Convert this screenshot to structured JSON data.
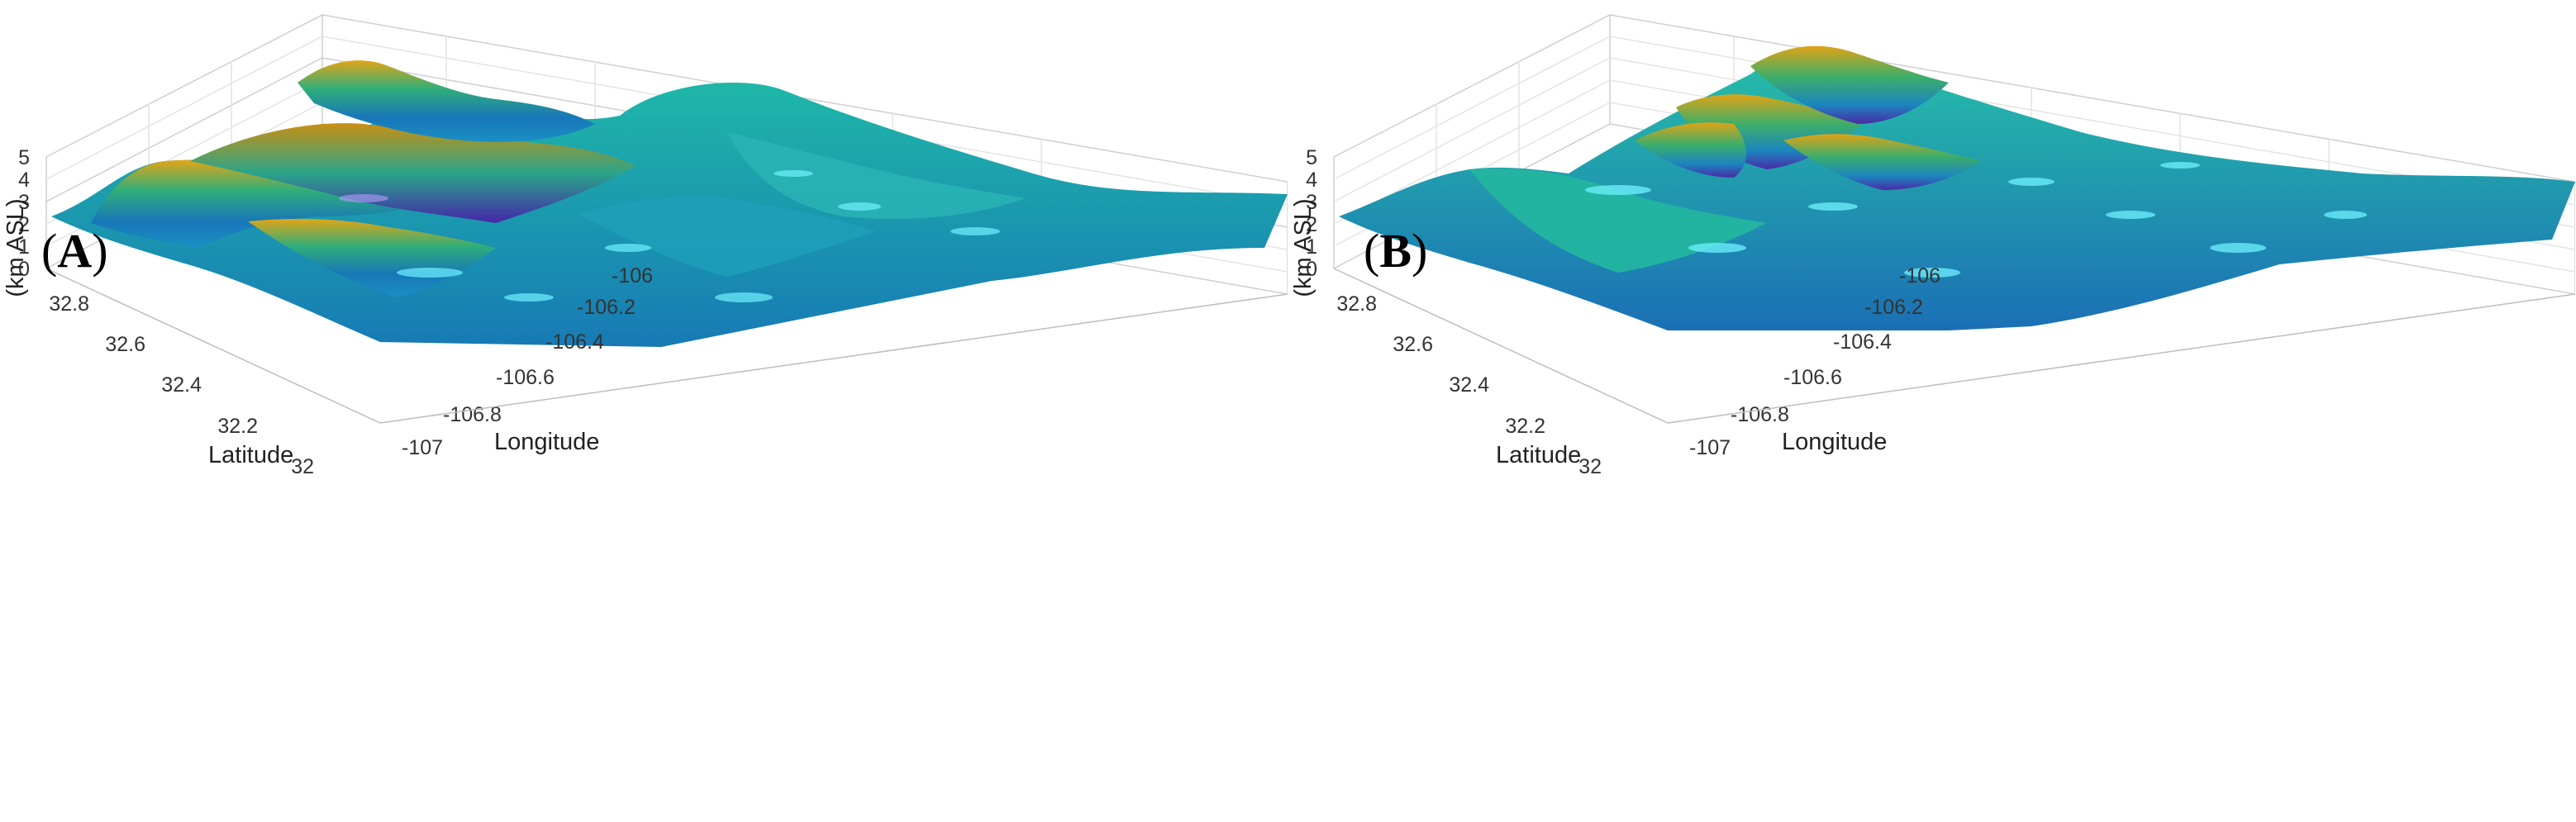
{
  "chart_data": [
    {
      "type": "surface",
      "panel_label": "A",
      "xlabel": "Latitude",
      "ylabel": "Longitude",
      "zlabel": "(km ASL)",
      "x_ticks": [
        "32.8",
        "32.6",
        "32.4",
        "32.2",
        "32"
      ],
      "y_ticks": [
        "-107",
        "-106.8",
        "-106.6",
        "-106.4",
        "-106.2",
        "-106"
      ],
      "z_ticks": [
        "0",
        "1",
        "2",
        "3",
        "4",
        "5"
      ],
      "xlim": [
        31.9,
        32.9
      ],
      "ylim": [
        -107.1,
        -105.9
      ],
      "zlim": [
        0,
        5
      ],
      "grid": true,
      "colormap": [
        "#3a0f8f",
        "#1f58c8",
        "#19a3d8",
        "#14c9c9",
        "#1fb38c",
        "#7fb42e",
        "#d8a514",
        "#f5cf2a"
      ]
    },
    {
      "type": "surface",
      "panel_label": "B",
      "xlabel": "Latitude",
      "ylabel": "Longitude",
      "zlabel": "(km ASL)",
      "x_ticks": [
        "32.8",
        "32.6",
        "32.4",
        "32.2",
        "32"
      ],
      "y_ticks": [
        "-107",
        "-106.8",
        "-106.6",
        "-106.4",
        "-106.2",
        "-106"
      ],
      "z_ticks": [
        "0",
        "1",
        "2",
        "3",
        "4",
        "5"
      ],
      "xlim": [
        31.9,
        32.9
      ],
      "ylim": [
        -107.1,
        -105.9
      ],
      "zlim": [
        0,
        5
      ],
      "grid": true,
      "colormap": [
        "#3a0f8f",
        "#1f58c8",
        "#19a3d8",
        "#14c9c9",
        "#1fb38c",
        "#7fb42e",
        "#d8a514",
        "#f5cf2a"
      ]
    }
  ]
}
